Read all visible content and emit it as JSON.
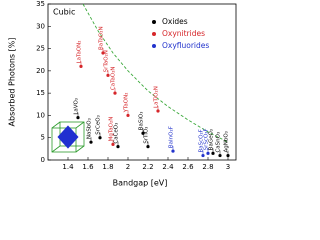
{
  "chart_data": {
    "type": "scatter",
    "title": "Cubic",
    "x_label": "Bandgap [eV]",
    "y_label": "Absorbed Photons [%]",
    "xlim": [
      1.2,
      3.08
    ],
    "ylim": [
      0,
      35
    ],
    "xticks": [
      1.4,
      1.6,
      1.8,
      2.0,
      2.2,
      2.4,
      2.6,
      2.8,
      3.0
    ],
    "yticks": [
      0,
      5,
      10,
      15,
      20,
      25,
      30,
      35
    ],
    "legend": "upper right",
    "series": [
      {
        "name": "Oxides",
        "color": "#000000",
        "x": [
          1.5,
          1.63,
          1.72,
          1.9,
          2.15,
          2.2,
          2.85,
          2.92,
          3.0
        ],
        "values": [
          9.5,
          4,
          5,
          3,
          6,
          3,
          1.5,
          1,
          1
        ],
        "labels": [
          "LaVO₃",
          "NaSbO₃",
          "SrCeO₃",
          "CaCeO₃",
          "BaSiO₃",
          "SrTiO₃",
          "BaGeO₃",
          "CaSnO₃",
          "AgNbO₃"
        ]
      },
      {
        "name": "Oxynitrides",
        "color": "#d6262a",
        "x": [
          1.53,
          1.75,
          1.8,
          1.87,
          1.85,
          2.0,
          2.3
        ],
        "values": [
          21,
          24,
          19,
          15,
          3.5,
          10,
          11
        ],
        "labels": [
          "LaTaON₂",
          "BaTaO₂N",
          "SrTaO₂N",
          "CaTaO₂N",
          "MgTaO₂N",
          "YTaON₂",
          "LaTiO₂N"
        ]
      },
      {
        "name": "Oxyfluorides",
        "color": "#2233cc",
        "x": [
          2.45,
          2.75,
          2.8
        ],
        "values": [
          2,
          1,
          1.5
        ],
        "labels": [
          "BaInO₂F",
          "BaScO₂F",
          "SrScO₂F"
        ]
      }
    ],
    "limit_curve": {
      "color": "#3aa83a",
      "x": [
        1.55,
        1.7,
        1.85,
        2.0,
        2.2,
        2.4,
        2.6,
        2.8,
        3.0
      ],
      "values": [
        35,
        29,
        24,
        20,
        15.5,
        12,
        9,
        6.3,
        4
      ]
    }
  }
}
